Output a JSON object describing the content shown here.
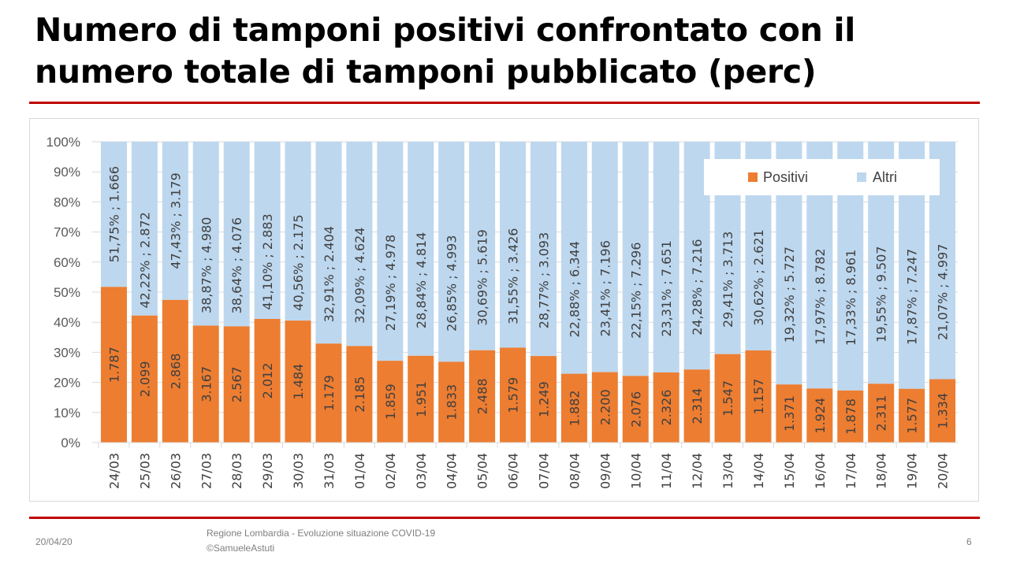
{
  "title": "Numero di tamponi positivi confrontato con il numero totale di tamponi pubblicato (perc)",
  "footer": {
    "date": "20/04/20",
    "source_line1": "Regione Lombardia - Evoluzione situazione COVID-19",
    "source_line2": "©SamueleAstuti",
    "page_number": "6"
  },
  "colors": {
    "positivi": "#ED7D31",
    "altri": "#BDD7EE",
    "accent": "#C00000"
  },
  "chart_data": {
    "type": "bar",
    "stacked": "percent",
    "title": "",
    "xlabel": "",
    "ylabel": "",
    "ylim": [
      0,
      100
    ],
    "yticks": [
      "0%",
      "10%",
      "20%",
      "30%",
      "40%",
      "50%",
      "60%",
      "70%",
      "80%",
      "90%",
      "100%"
    ],
    "grid": true,
    "legend_position": "top-right",
    "categories": [
      "24/03",
      "25/03",
      "26/03",
      "27/03",
      "28/03",
      "29/03",
      "30/03",
      "31/03",
      "01/04",
      "02/04",
      "03/04",
      "04/04",
      "05/04",
      "06/04",
      "07/04",
      "08/04",
      "09/04",
      "10/04",
      "11/04",
      "12/04",
      "13/04",
      "14/04",
      "15/04",
      "16/04",
      "17/04",
      "18/04",
      "19/04",
      "20/04"
    ],
    "series": [
      {
        "name": "Positivi",
        "values": [
          1787,
          2099,
          2868,
          3167,
          2567,
          2012,
          1484,
          1179,
          2185,
          1859,
          1951,
          1833,
          2488,
          1579,
          1249,
          1882,
          2200,
          2076,
          2326,
          2314,
          1547,
          1157,
          1371,
          1924,
          1878,
          2311,
          1577,
          1334
        ],
        "labels": [
          "1.787",
          "2.099",
          "2.868",
          "3.167",
          "2.567",
          "2.012",
          "1.484",
          "1.179",
          "2.185",
          "1.859",
          "1.951",
          "1.833",
          "2.488",
          "1.579",
          "1.249",
          "1.882",
          "2.200",
          "2.076",
          "2.326",
          "2.314",
          "1.547",
          "1.157",
          "1.371",
          "1.924",
          "1.878",
          "2.311",
          "1.577",
          "1.334"
        ]
      },
      {
        "name": "Altri",
        "values": [
          1666,
          2872,
          3179,
          4980,
          4076,
          2883,
          2175,
          2404,
          4624,
          4978,
          4814,
          4993,
          5619,
          3426,
          3093,
          6344,
          7196,
          7296,
          7651,
          7216,
          3713,
          2621,
          5727,
          8782,
          8961,
          9507,
          7247,
          4997
        ],
        "labels": [
          "51,75% ; 1.666",
          "42,22% ; 2.872",
          "47,43% ; 3.179",
          "38,87% ; 4.980",
          "38,64% ; 4.076",
          "41,10% ; 2.883",
          "40,56% ; 2.175",
          "32,91% ; 2.404",
          "32,09% ; 4.624",
          "27,19% ; 4.978",
          "28,84% ; 4.814",
          "26,85% ; 4.993",
          "30,69% ; 5.619",
          "31,55% ; 3.426",
          "28,77% ; 3.093",
          "22,88% ; 6.344",
          "23,41% ; 7.196",
          "22,15% ; 7.296",
          "23,31% ; 7.651",
          "24,28% ; 7.216",
          "29,41% ; 3.713",
          "30,62% ; 2.621",
          "19,32% ; 5.727",
          "17,97% ; 8.782",
          "17,33% ; 8.961",
          "19,55% ; 9.507",
          "17,87% ; 7.247",
          "21,07% ; 4.997"
        ]
      }
    ],
    "positive_percent": [
      51.75,
      42.22,
      47.43,
      38.87,
      38.64,
      41.1,
      40.56,
      32.91,
      32.09,
      27.19,
      28.84,
      26.85,
      30.69,
      31.55,
      28.77,
      22.88,
      23.41,
      22.15,
      23.31,
      24.28,
      29.41,
      30.62,
      19.32,
      17.97,
      17.33,
      19.55,
      17.87,
      21.07
    ]
  }
}
